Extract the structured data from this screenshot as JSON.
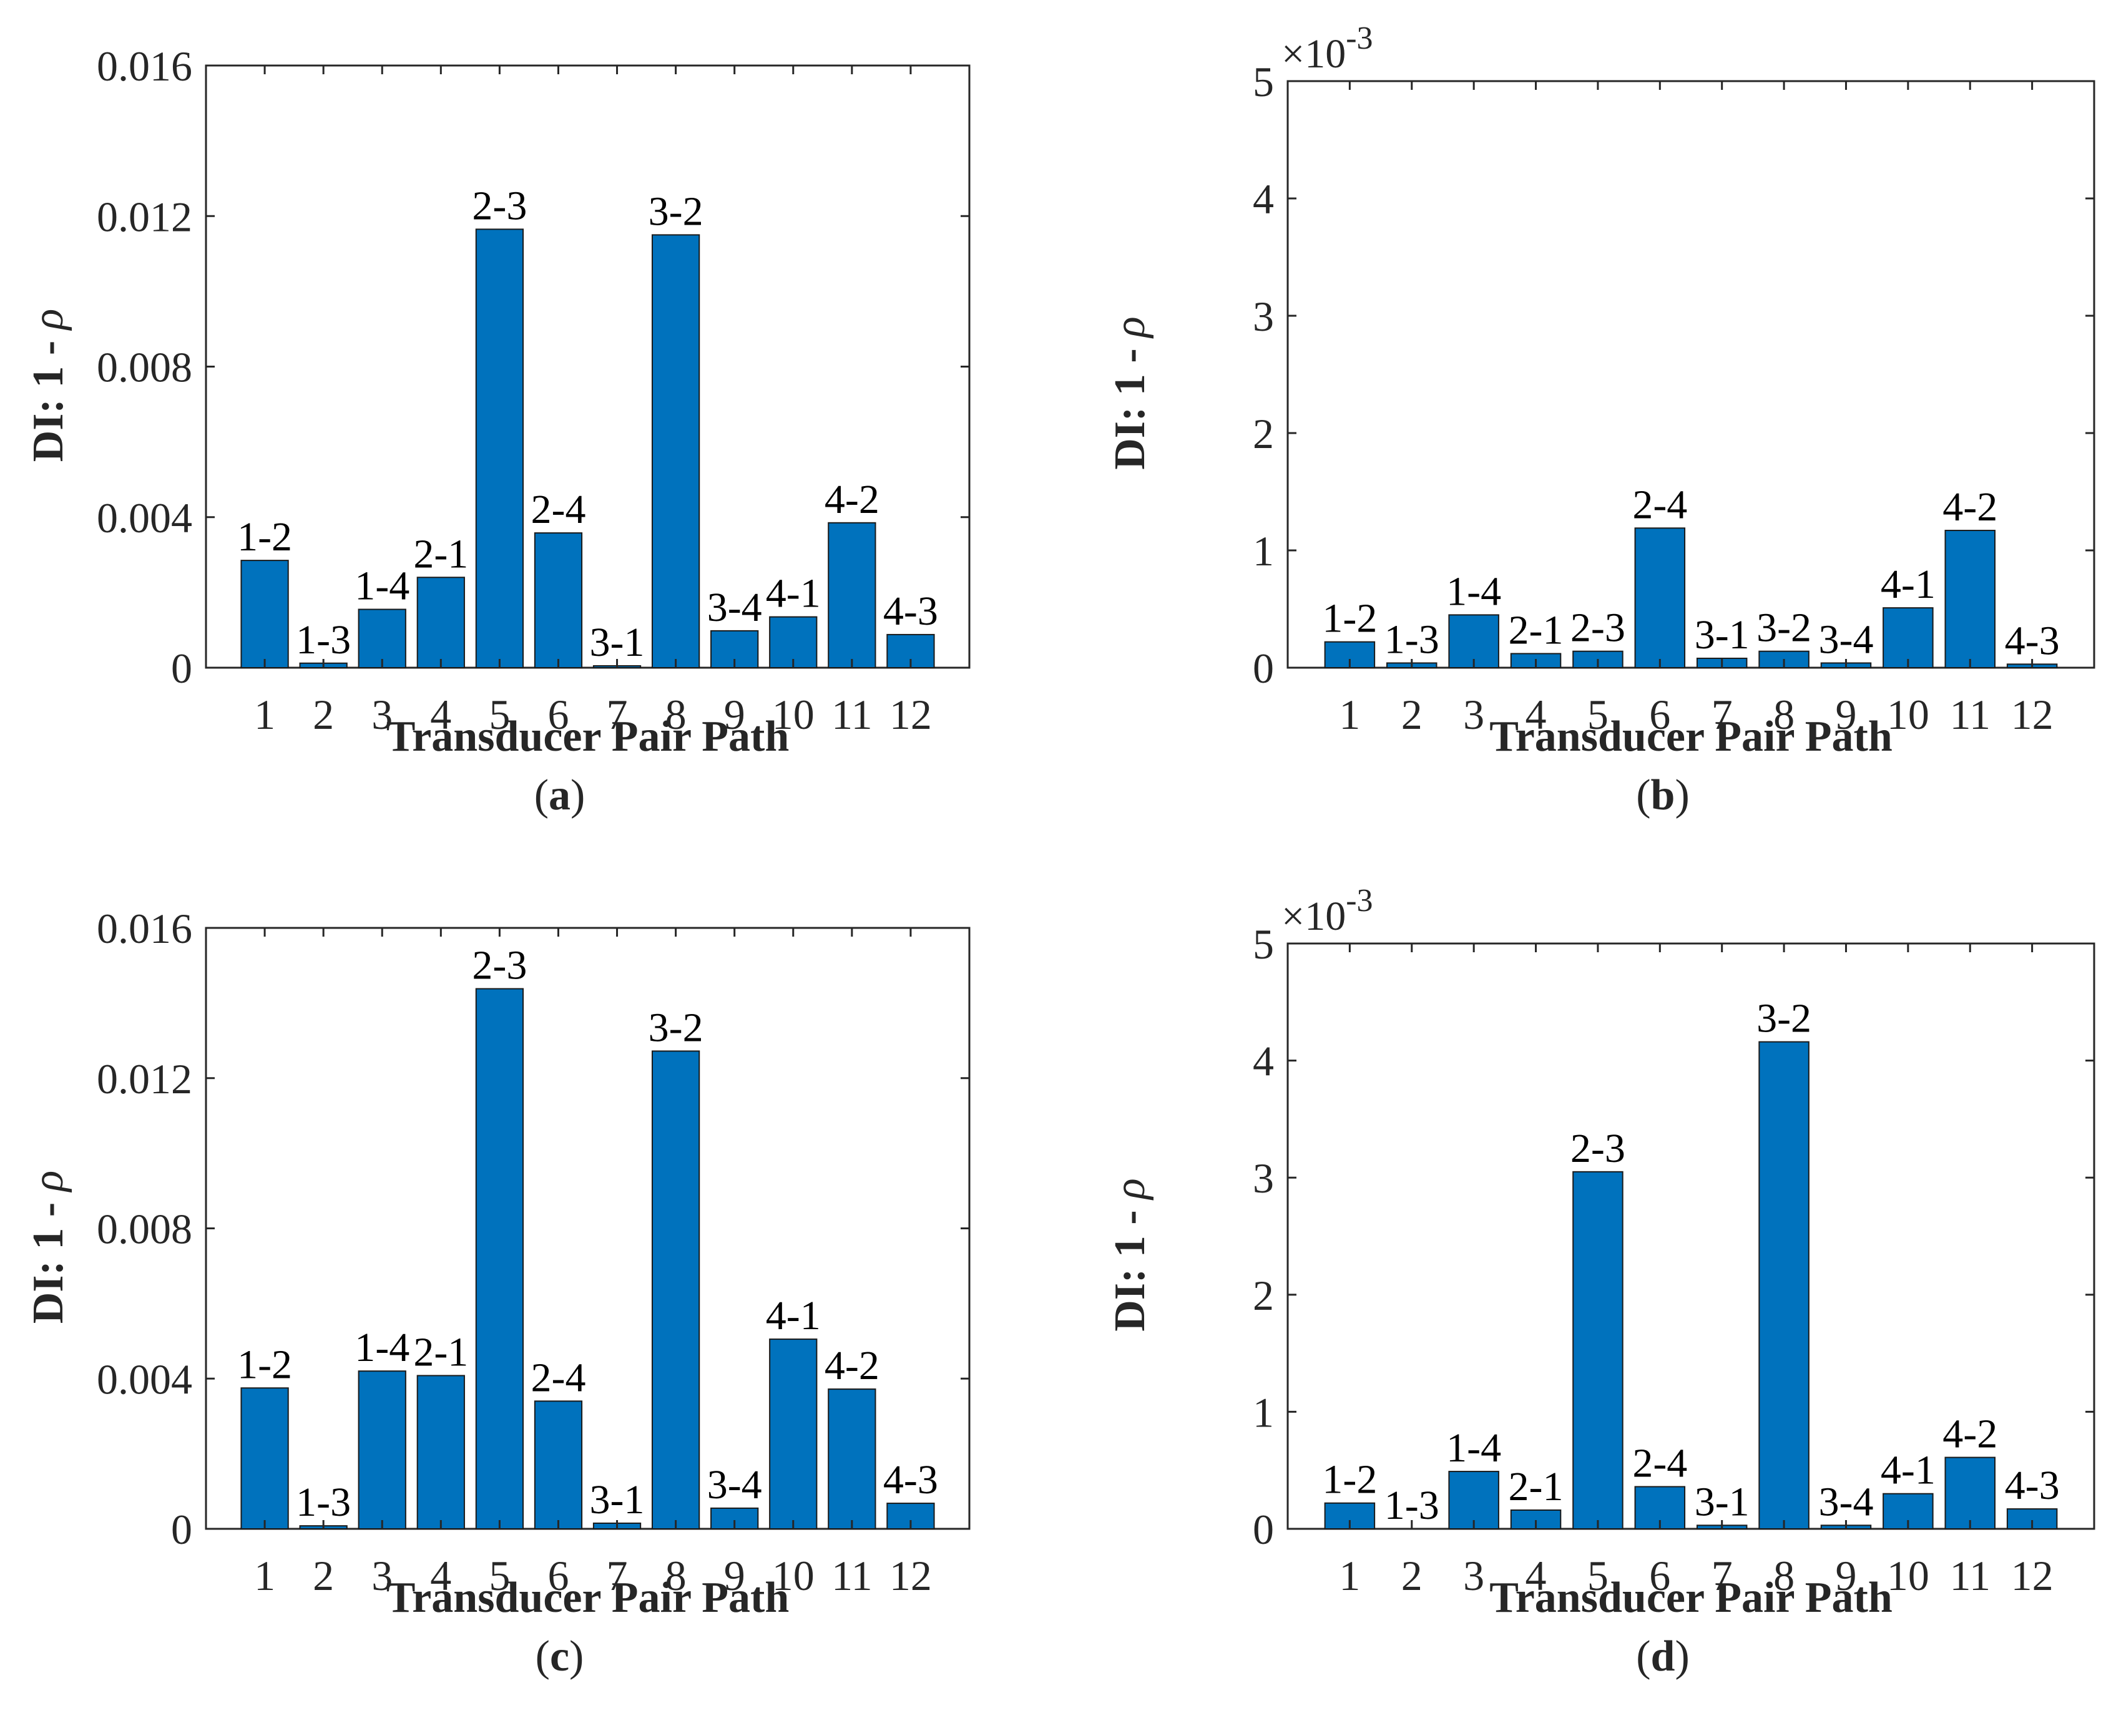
{
  "chart_data": [
    {
      "type": "bar",
      "panel": "a",
      "categories": [
        "1",
        "2",
        "3",
        "4",
        "5",
        "6",
        "7",
        "8",
        "9",
        "10",
        "11",
        "12"
      ],
      "values": [
        0.00285,
        0.00012,
        0.00155,
        0.0024,
        0.01165,
        0.00358,
        5e-05,
        0.0115,
        0.00098,
        0.00135,
        0.00385,
        0.00088
      ],
      "bar_labels": [
        "1-2",
        "1-3",
        "1-4",
        "2-1",
        "2-3",
        "2-4",
        "3-1",
        "3-2",
        "3-4",
        "4-1",
        "4-2",
        "4-3"
      ],
      "yticks": [
        0,
        0.004,
        0.008,
        0.012,
        0.016
      ],
      "ytick_labels": [
        "0",
        "0.004",
        "0.008",
        "0.012",
        "0.016"
      ],
      "ylim": [
        0,
        0.016
      ],
      "exponent_label": "",
      "xlabel": "Transducer Pair Path",
      "ylabel_prefix": "DI: 1 - ",
      "ylabel_symbol": "ρ",
      "caption_letter": "a"
    },
    {
      "type": "bar",
      "panel": "b",
      "categories": [
        "1",
        "2",
        "3",
        "4",
        "5",
        "6",
        "7",
        "8",
        "9",
        "10",
        "11",
        "12"
      ],
      "values": [
        0.22,
        0.04,
        0.45,
        0.12,
        0.14,
        1.19,
        0.08,
        0.14,
        0.04,
        0.51,
        1.17,
        0.03
      ],
      "bar_labels": [
        "1-2",
        "1-3",
        "1-4",
        "2-1",
        "2-3",
        "2-4",
        "3-1",
        "3-2",
        "3-4",
        "4-1",
        "4-2",
        "4-3"
      ],
      "yticks": [
        0,
        1,
        2,
        3,
        4,
        5
      ],
      "ytick_labels": [
        "0",
        "1",
        "2",
        "3",
        "4",
        "5"
      ],
      "ylim": [
        0,
        5
      ],
      "exponent_label": "×10",
      "exponent_power": "-3",
      "xlabel": "Transducer Pair Path",
      "ylabel_prefix": "DI: 1 - ",
      "ylabel_symbol": "ρ",
      "caption_letter": "b"
    },
    {
      "type": "bar",
      "panel": "c",
      "categories": [
        "1",
        "2",
        "3",
        "4",
        "5",
        "6",
        "7",
        "8",
        "9",
        "10",
        "11",
        "12"
      ],
      "values": [
        0.00375,
        8e-05,
        0.0042,
        0.00408,
        0.01438,
        0.0034,
        0.00015,
        0.01272,
        0.00055,
        0.00505,
        0.00372,
        0.00068
      ],
      "bar_labels": [
        "1-2",
        "1-3",
        "1-4",
        "2-1",
        "2-3",
        "2-4",
        "3-1",
        "3-2",
        "3-4",
        "4-1",
        "4-2",
        "4-3"
      ],
      "yticks": [
        0,
        0.004,
        0.008,
        0.012,
        0.016
      ],
      "ytick_labels": [
        "0",
        "0.004",
        "0.008",
        "0.012",
        "0.016"
      ],
      "ylim": [
        0,
        0.016
      ],
      "exponent_label": "",
      "xlabel": "Transducer Pair Path",
      "ylabel_prefix": "DI: 1 - ",
      "ylabel_symbol": "ρ",
      "caption_letter": "c"
    },
    {
      "type": "bar",
      "panel": "d",
      "categories": [
        "1",
        "2",
        "3",
        "4",
        "5",
        "6",
        "7",
        "8",
        "9",
        "10",
        "11",
        "12"
      ],
      "values": [
        0.22,
        0.0,
        0.49,
        0.16,
        3.05,
        0.36,
        0.03,
        4.16,
        0.03,
        0.3,
        0.61,
        0.17
      ],
      "bar_labels": [
        "1-2",
        "1-3",
        "1-4",
        "2-1",
        "2-3",
        "2-4",
        "3-1",
        "3-2",
        "3-4",
        "4-1",
        "4-2",
        "4-3"
      ],
      "yticks": [
        0,
        1,
        2,
        3,
        4,
        5
      ],
      "ytick_labels": [
        "0",
        "1",
        "2",
        "3",
        "4",
        "5"
      ],
      "ylim": [
        0,
        5
      ],
      "exponent_label": "×10",
      "exponent_power": "-3",
      "xlabel": "Transducer Pair Path",
      "ylabel_prefix": "DI: 1 - ",
      "ylabel_symbol": "ρ",
      "caption_letter": "d"
    }
  ],
  "colors": {
    "bar": "#0072BD",
    "axis": "#262626"
  },
  "caption_open": "(",
  "caption_close": ")"
}
